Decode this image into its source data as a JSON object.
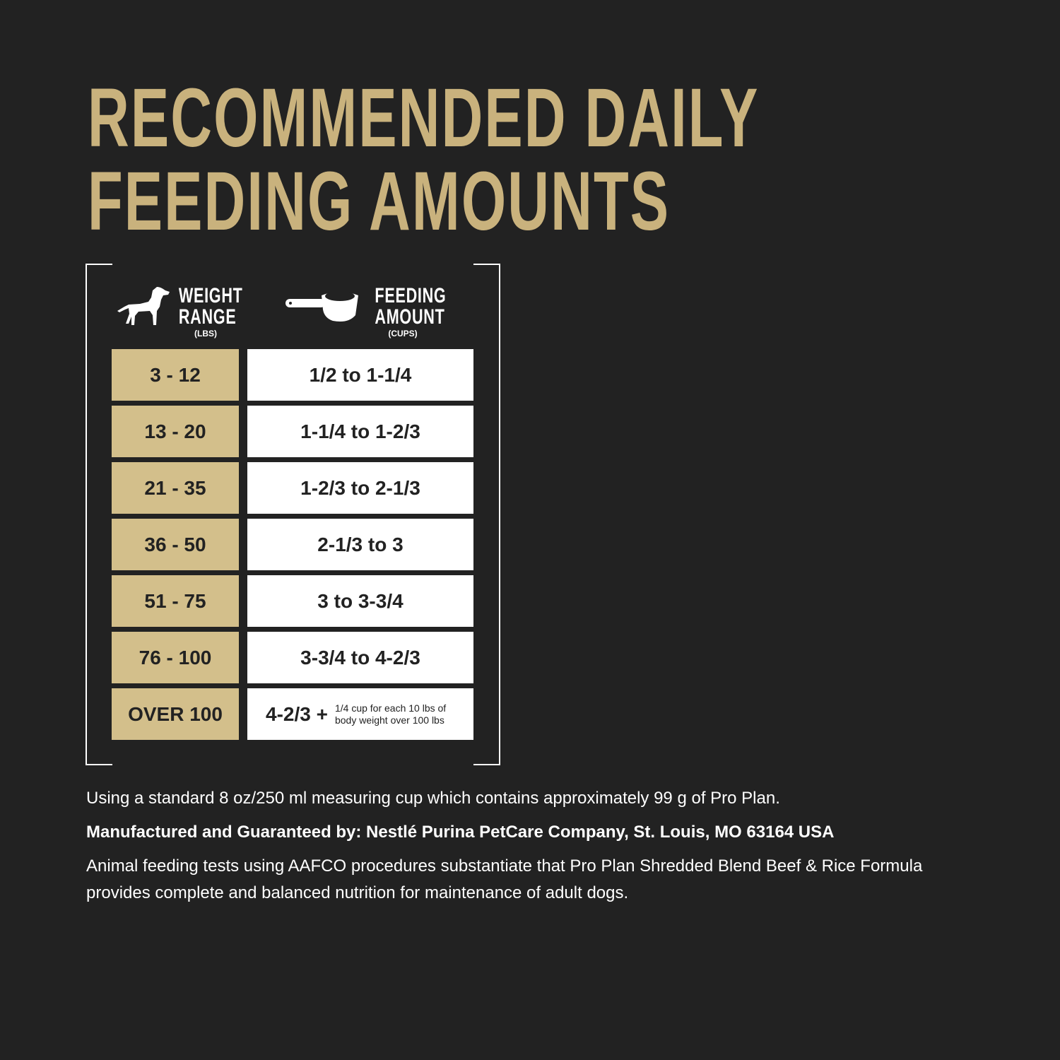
{
  "title": {
    "line1": "RECOMMENDED DAILY",
    "line2": "FEEDING AMOUNTS"
  },
  "colors": {
    "background": "#222222",
    "gold": "#c9b27d",
    "cell_gold": "#d3bf8b"
  },
  "headers": {
    "weight": {
      "line1": "WEIGHT",
      "line2": "RANGE",
      "unit": "(LBS)",
      "icon": "dog-icon"
    },
    "feeding": {
      "line1": "FEEDING",
      "line2": "AMOUNT",
      "unit": "(CUPS)",
      "icon": "measuring-cup-icon"
    }
  },
  "rows": [
    {
      "weight": "3 - 12",
      "amount": "1/2 to 1-1/4"
    },
    {
      "weight": "13 - 20",
      "amount": "1-1/4 to 1-2/3"
    },
    {
      "weight": "21 - 35",
      "amount": "1-2/3 to 2-1/3"
    },
    {
      "weight": "36 - 50",
      "amount": "2-1/3 to 3"
    },
    {
      "weight": "51 - 75",
      "amount": "3 to 3-3/4"
    },
    {
      "weight": "76 - 100",
      "amount": "3-3/4 to 4-2/3"
    },
    {
      "weight": "OVER 100",
      "amount": "4-2/3 +",
      "note": "1/4 cup for each 10 lbs of body weight over 100 lbs"
    }
  ],
  "footer": {
    "line1": "Using a standard 8 oz/250 ml measuring cup which contains approximately 99 g of Pro Plan.",
    "line2": "Manufactured and Guaranteed by: Nestlé Purina PetCare Company, St. Louis, MO 63164 USA",
    "line3": "Animal feeding tests using AAFCO procedures substantiate that Pro Plan Shredded Blend Beef & Rice Formula provides complete and balanced nutrition for maintenance of adult dogs."
  }
}
